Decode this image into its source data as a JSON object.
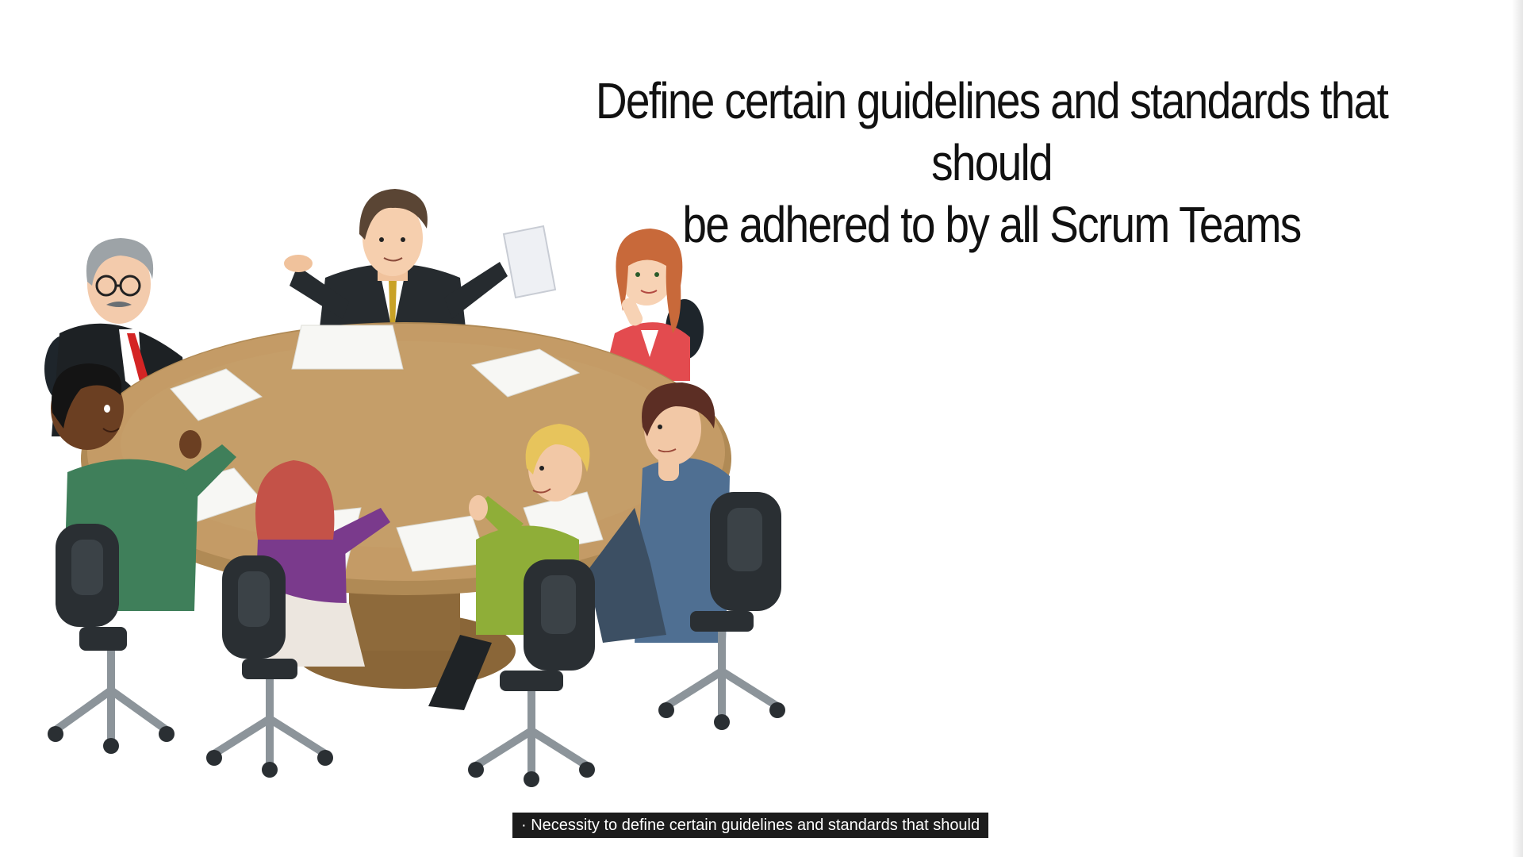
{
  "slide": {
    "headline_line1": "Define certain guidelines and standards that should",
    "headline_line2": "be adhered to by all Scrum Teams",
    "illustration_icon": "meeting-table-illustration"
  },
  "caption": {
    "text": "· Necessity to define certain guidelines and standards that should"
  },
  "colors": {
    "background": "#ffffff",
    "headline": "#111111",
    "caption_bg": "#1c1c1c",
    "caption_text": "#ffffff",
    "table": "#b08a55"
  }
}
